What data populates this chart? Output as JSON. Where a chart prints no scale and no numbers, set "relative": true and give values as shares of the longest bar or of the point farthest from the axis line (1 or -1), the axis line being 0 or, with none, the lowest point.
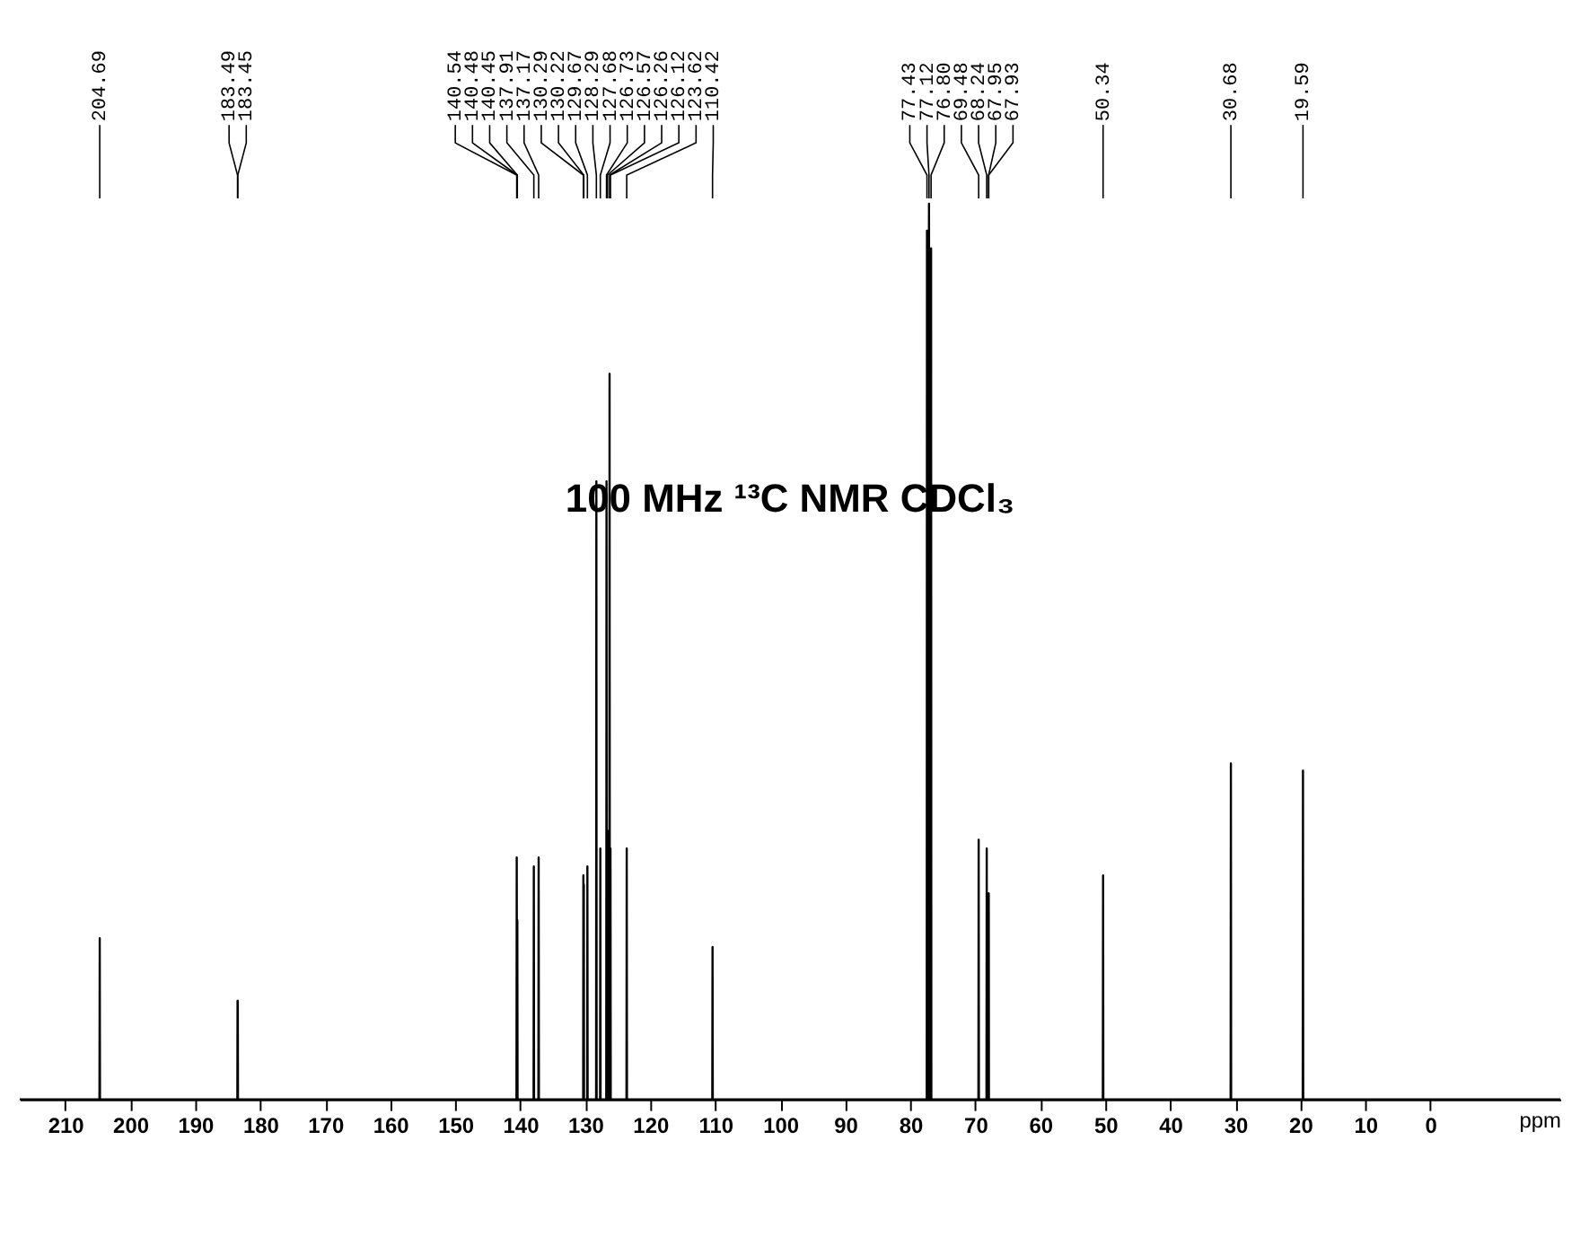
{
  "chart_data": {
    "type": "line",
    "relative": true,
    "xlabel": "ppm",
    "xlim": [
      217,
      -20
    ],
    "xticks": [
      210,
      200,
      190,
      180,
      170,
      160,
      150,
      140,
      130,
      120,
      110,
      100,
      90,
      80,
      70,
      60,
      50,
      40,
      30,
      20,
      10,
      0
    ],
    "grid": false,
    "marker": "none",
    "line_style": "solid",
    "series": [
      {
        "color": "#000000",
        "x": [
          217,
          204.73,
          204.69,
          204.65,
          183.52,
          183.49,
          183.47,
          183.45,
          183.42,
          140.58,
          140.54,
          140.51,
          140.48,
          140.465,
          140.45,
          140.41,
          137.95,
          137.91,
          137.87,
          137.21,
          137.17,
          137.13,
          130.32,
          130.29,
          130.255,
          130.22,
          130.19,
          129.71,
          129.67,
          129.63,
          128.33,
          128.29,
          128.25,
          127.72,
          127.68,
          127.64,
          126.77,
          126.73,
          126.69,
          126.61,
          126.57,
          126.53,
          126.3,
          126.26,
          126.22,
          126.16,
          126.12,
          126.08,
          123.66,
          123.62,
          123.58,
          110.46,
          110.42,
          110.38,
          77.47,
          77.43,
          77.28,
          77.12,
          76.96,
          76.8,
          76.76,
          69.52,
          69.48,
          69.44,
          68.28,
          68.24,
          68.2,
          67.98,
          67.95,
          67.94,
          67.93,
          67.9,
          50.38,
          50.34,
          50.3,
          30.72,
          30.68,
          30.64,
          19.63,
          19.59,
          19.55,
          -20
        ],
        "values": [
          0,
          0,
          0.18,
          0,
          0,
          0.11,
          0.08,
          0.11,
          0,
          0,
          0.27,
          0.1,
          0.2,
          0.15,
          0.2,
          0,
          0,
          0.26,
          0,
          0,
          0.27,
          0,
          0,
          0.25,
          0,
          0.24,
          0,
          0,
          0.26,
          0,
          0,
          0.69,
          0,
          0,
          0.28,
          0,
          0,
          0.69,
          0,
          0,
          0.3,
          0,
          0,
          0.81,
          0,
          0,
          0.28,
          0,
          0,
          0.28,
          0,
          0,
          0.17,
          0,
          0,
          0.97,
          0,
          1.0,
          0,
          0.95,
          0,
          0,
          0.29,
          0,
          0,
          0.28,
          0,
          0,
          0.23,
          0.2,
          0.23,
          0,
          0,
          0.25,
          0,
          0,
          0.375,
          0,
          0,
          0.367,
          0,
          0
        ]
      }
    ],
    "annotations": [
      "100 MHz ¹³C NMR CDCl₃",
      "204.69",
      "183.49",
      "183.45",
      "140.54",
      "140.48",
      "140.45",
      "137.91",
      "137.17",
      "130.29",
      "130.22",
      "129.67",
      "128.29",
      "127.68",
      "126.73",
      "126.57",
      "126.26",
      "126.12",
      "123.62",
      "110.42",
      "77.43",
      "77.12",
      "76.80",
      "69.48",
      "68.24",
      "67.95",
      "67.93",
      "50.34",
      "30.68",
      "19.59"
    ]
  }
}
